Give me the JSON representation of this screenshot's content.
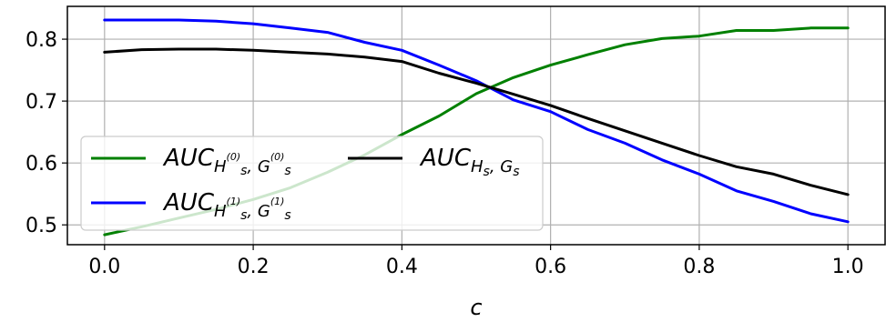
{
  "chart_data": {
    "type": "line",
    "title": "",
    "xlabel": "c",
    "ylabel": "",
    "xlim": [
      -0.05,
      1.05
    ],
    "ylim": [
      0.468,
      0.853
    ],
    "xticks": [
      0.0,
      0.2,
      0.4,
      0.6,
      0.8,
      1.0
    ],
    "xtick_labels": [
      "0.0",
      "0.2",
      "0.4",
      "0.6",
      "0.8",
      "1.0"
    ],
    "yticks": [
      0.5,
      0.6,
      0.7,
      0.8
    ],
    "ytick_labels": [
      "0.5",
      "0.6",
      "0.7",
      "0.8"
    ],
    "grid": true,
    "legend_position": "center-left",
    "x": [
      0.0,
      0.05,
      0.1,
      0.15,
      0.2,
      0.25,
      0.3,
      0.35,
      0.4,
      0.45,
      0.5,
      0.55,
      0.6,
      0.65,
      0.7,
      0.75,
      0.8,
      0.85,
      0.9,
      0.95,
      1.0
    ],
    "series": [
      {
        "name": "AUC_{H_s^{(0)}, G_s^{(0)}}",
        "legend": {
          "base": "AUC",
          "sub1": "H",
          "sub1_sub": "s",
          "sub1_sup": "(0)",
          "comma": ",",
          "sub2": "G",
          "sub2_sub": "s",
          "sub2_sup": "(0)"
        },
        "color": "#008000",
        "values": [
          0.484,
          0.497,
          0.511,
          0.525,
          0.541,
          0.56,
          0.585,
          0.613,
          0.646,
          0.676,
          0.712,
          0.738,
          0.758,
          0.775,
          0.791,
          0.801,
          0.805,
          0.814,
          0.814,
          0.818,
          0.818
        ]
      },
      {
        "name": "AUC_{H_s^{(1)}, G_s^{(1)}}",
        "legend": {
          "base": "AUC",
          "sub1": "H",
          "sub1_sub": "s",
          "sub1_sup": "(1)",
          "comma": ",",
          "sub2": "G",
          "sub2_sub": "s",
          "sub2_sup": "(1)"
        },
        "color": "#0000ff",
        "values": [
          0.831,
          0.831,
          0.831,
          0.829,
          0.825,
          0.818,
          0.811,
          0.795,
          0.782,
          0.758,
          0.733,
          0.702,
          0.683,
          0.654,
          0.632,
          0.605,
          0.582,
          0.555,
          0.538,
          0.518,
          0.505
        ]
      },
      {
        "name": "AUC_{H_s, G_s}",
        "legend": {
          "base": "AUC",
          "sub1": "H",
          "sub1_sub": "s",
          "comma": ",",
          "sub2": "G",
          "sub2_sub": "s"
        },
        "color": "#000000",
        "values": [
          0.779,
          0.783,
          0.784,
          0.784,
          0.782,
          0.779,
          0.776,
          0.771,
          0.764,
          0.745,
          0.729,
          0.711,
          0.693,
          0.672,
          0.652,
          0.632,
          0.612,
          0.594,
          0.582,
          0.564,
          0.549
        ]
      }
    ]
  }
}
